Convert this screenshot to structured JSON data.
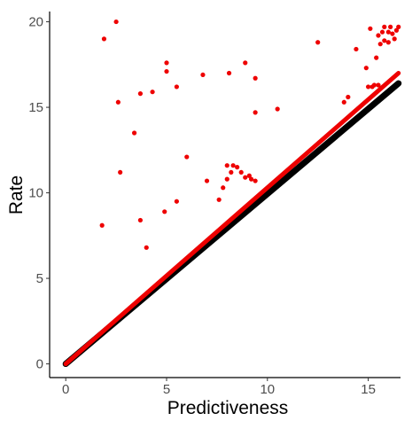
{
  "chart_data": {
    "type": "scatter",
    "title": "",
    "xlabel": "Predictiveness",
    "ylabel": "Rate",
    "xlim": [
      -0.8,
      16.6
    ],
    "ylim": [
      -0.8,
      20.6
    ],
    "xticks": [
      0,
      5,
      10,
      15
    ],
    "yticks": [
      0,
      5,
      10,
      15,
      20
    ],
    "grid": false,
    "legend": "none",
    "colors": {
      "points": "#ee0000",
      "identity_line": "#000000",
      "fit_line": "#ee0000",
      "axis": "#000000",
      "tick_text": "#4d4d4d"
    },
    "series": [
      {
        "type": "scatter",
        "points": [
          [
            1.8,
            8.1
          ],
          [
            1.9,
            19.0
          ],
          [
            2.5,
            20.0
          ],
          [
            2.6,
            15.3
          ],
          [
            2.7,
            11.2
          ],
          [
            3.4,
            13.5
          ],
          [
            3.7,
            8.4
          ],
          [
            3.7,
            15.8
          ],
          [
            4.0,
            6.8
          ],
          [
            4.3,
            15.9
          ],
          [
            4.9,
            8.9
          ],
          [
            5.0,
            17.1
          ],
          [
            5.0,
            17.6
          ],
          [
            5.5,
            9.5
          ],
          [
            5.5,
            16.2
          ],
          [
            6.0,
            12.1
          ],
          [
            6.8,
            16.9
          ],
          [
            7.0,
            10.7
          ],
          [
            7.6,
            9.6
          ],
          [
            7.8,
            10.3
          ],
          [
            8.0,
            10.8
          ],
          [
            8.0,
            11.6
          ],
          [
            8.1,
            17.0
          ],
          [
            8.2,
            11.2
          ],
          [
            8.3,
            11.6
          ],
          [
            8.5,
            11.5
          ],
          [
            8.7,
            11.2
          ],
          [
            8.9,
            17.6
          ],
          [
            8.9,
            10.9
          ],
          [
            9.1,
            11.0
          ],
          [
            9.2,
            10.8
          ],
          [
            9.4,
            16.7
          ],
          [
            9.4,
            14.7
          ],
          [
            9.4,
            10.7
          ],
          [
            10.5,
            14.9
          ],
          [
            12.5,
            18.8
          ],
          [
            13.8,
            15.3
          ],
          [
            14.0,
            15.6
          ],
          [
            14.4,
            18.4
          ],
          [
            14.9,
            17.3
          ],
          [
            15.0,
            16.2
          ],
          [
            15.1,
            19.6
          ],
          [
            15.2,
            16.2
          ],
          [
            15.3,
            16.3
          ],
          [
            15.5,
            16.3
          ],
          [
            15.4,
            17.9
          ],
          [
            15.5,
            19.2
          ],
          [
            15.6,
            18.7
          ],
          [
            15.7,
            19.4
          ],
          [
            15.8,
            19.7
          ],
          [
            15.8,
            18.9
          ],
          [
            16.0,
            19.4
          ],
          [
            16.0,
            18.8
          ],
          [
            16.1,
            19.7
          ],
          [
            16.2,
            19.3
          ],
          [
            16.3,
            19.0
          ],
          [
            16.4,
            19.5
          ],
          [
            16.5,
            19.7
          ]
        ]
      },
      {
        "type": "line",
        "points": [
          [
            0,
            0
          ],
          [
            16.5,
            16.4
          ]
        ]
      },
      {
        "type": "line",
        "points": [
          [
            0,
            0
          ],
          [
            16.5,
            17.0
          ]
        ]
      }
    ]
  }
}
